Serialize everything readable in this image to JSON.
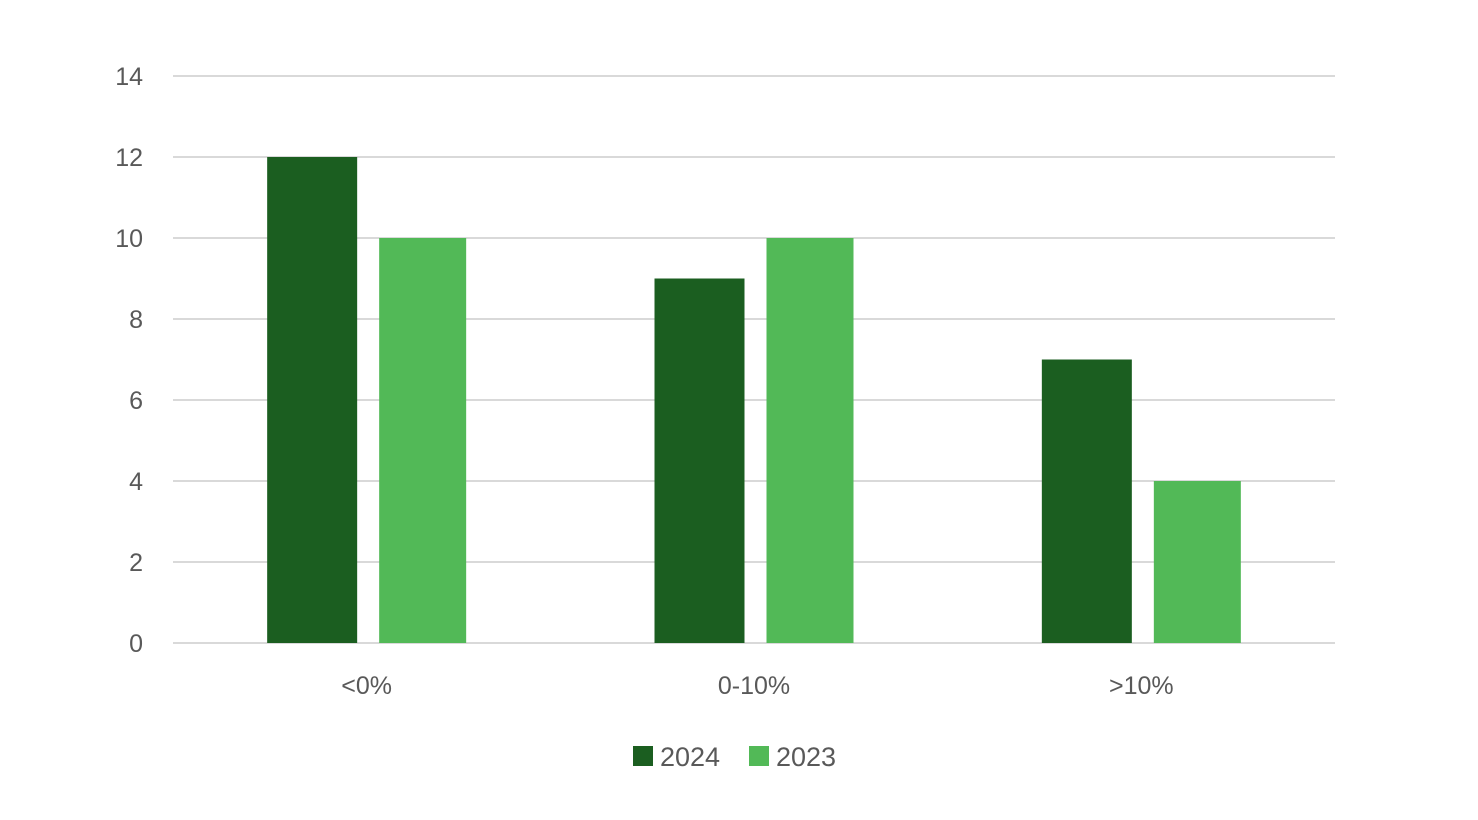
{
  "chart_data": {
    "type": "bar",
    "title": "",
    "xlabel": "",
    "ylabel": "",
    "categories": [
      "<0%",
      "0-10%",
      ">10%"
    ],
    "series": [
      {
        "name": "2024",
        "color": "#1b5e20",
        "values": [
          12,
          9,
          7
        ]
      },
      {
        "name": "2023",
        "color": "#52b957",
        "values": [
          10,
          10,
          4
        ]
      }
    ],
    "ylim": [
      0,
      14
    ],
    "yticks": [
      0,
      2,
      4,
      6,
      8,
      10,
      12,
      14
    ],
    "grid": true,
    "gridline_color": "#d9d9d9",
    "legend_position": "bottom"
  }
}
